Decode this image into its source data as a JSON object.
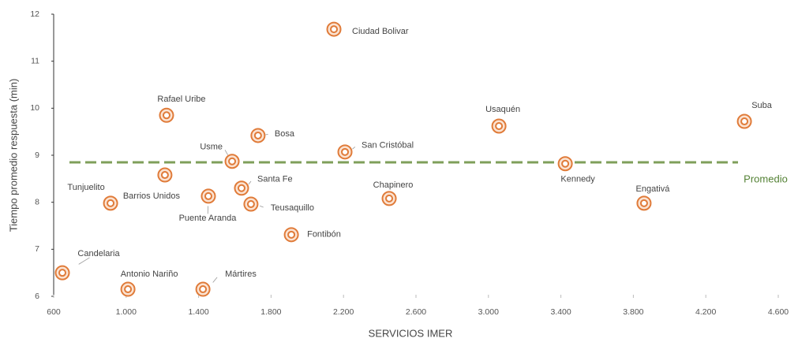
{
  "chart_data": {
    "type": "scatter",
    "xlabel": "SERVICIOS IMER",
    "ylabel": "Tiempo promedio respuesta (min)",
    "labels": [
      "Ciudad Bolivar",
      "Rafael Uribe",
      "Bosa",
      "Usme",
      "San Cristóbal",
      "Usaquén",
      "Suba",
      "Kennedy",
      "Engativá",
      "Chapinero",
      "Tunjuelito",
      "Barrios Unidos",
      "Puente Aranda",
      "Santa Fe",
      "Teusaquillo",
      "Fontibón",
      "Candelaria",
      "Antonio Nariño",
      "Mártires"
    ],
    "x": [
      2147,
      1223,
      1728,
      1585,
      2208,
      3058,
      4413,
      3424,
      3859,
      2452,
      914,
      1214,
      1454,
      1637,
      1689,
      1912,
      648,
      1010,
      1424
    ],
    "y": [
      11.68,
      9.85,
      9.42,
      8.87,
      9.07,
      9.62,
      9.72,
      8.82,
      7.98,
      8.08,
      7.98,
      8.58,
      8.13,
      8.3,
      7.96,
      7.31,
      6.5,
      6.15,
      6.15
    ],
    "color": "#e07b39",
    "average": {
      "label": "Promedio",
      "value": 8.85,
      "color": "#7f9f5a",
      "label_color": "#548235"
    },
    "xlim": [
      600,
      4600
    ],
    "xticks": [
      600,
      {
        "value": 1000,
        "label": "1.000"
      },
      {
        "value": 1400,
        "label": "1.400"
      },
      {
        "value": 1800,
        "label": "1.800"
      },
      {
        "value": 2200,
        "label": "2.200"
      },
      {
        "value": 2600,
        "label": "2.600"
      },
      {
        "value": 3000,
        "label": "3.000"
      },
      {
        "value": 3400,
        "label": "3.400"
      },
      {
        "value": 3800,
        "label": "3.800"
      },
      {
        "value": 4200,
        "label": "4.200"
      },
      {
        "value": 4600,
        "label": "4.600"
      }
    ],
    "ylim": [
      6,
      12
    ],
    "yticks": [
      6,
      7,
      8,
      9,
      10,
      11,
      12
    ]
  }
}
